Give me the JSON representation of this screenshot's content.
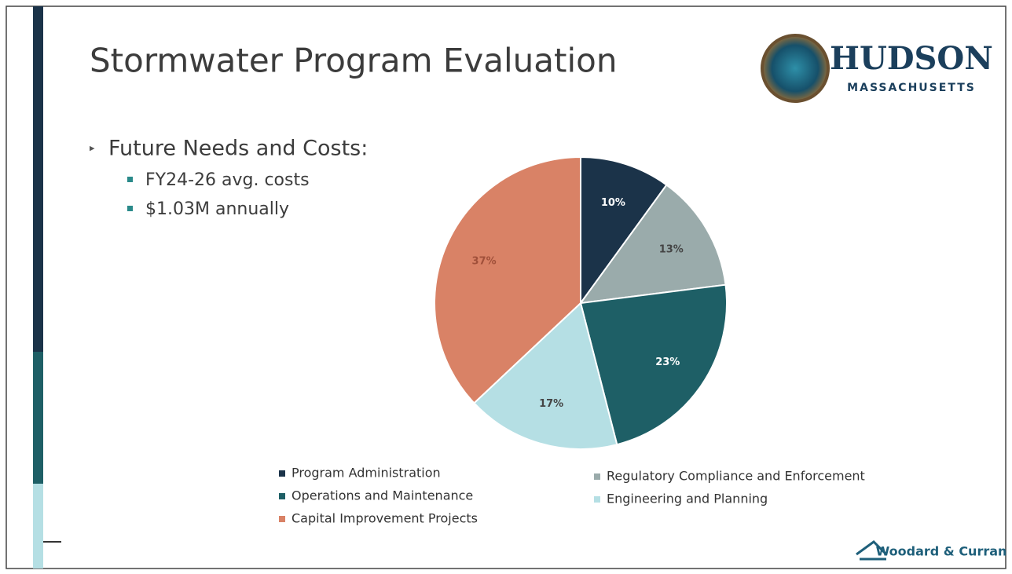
{
  "slide": {
    "title": "Stormwater Program Evaluation",
    "bullet": "Future Needs and Costs:",
    "sub_bullets": [
      "FY24-26 avg. costs",
      "$1.03M annually"
    ],
    "logo_name": "HUDSON",
    "logo_state": "MASSACHUSETTS",
    "footer_logo": "Woodard & Curran"
  },
  "chart_data": {
    "type": "pie",
    "categories": [
      "Program Administration",
      "Regulatory Compliance and Enforcement",
      "Operations and Maintenance",
      "Engineering and Planning",
      "Capital Improvement Projects"
    ],
    "values": [
      10,
      13,
      23,
      17,
      37
    ],
    "value_labels": [
      "10%",
      "13%",
      "23%",
      "17%",
      "37%"
    ],
    "colors": [
      "#1b3349",
      "#9aabab",
      "#1e5f66",
      "#b5dfe4",
      "#d98266"
    ],
    "legend": "bottom"
  }
}
